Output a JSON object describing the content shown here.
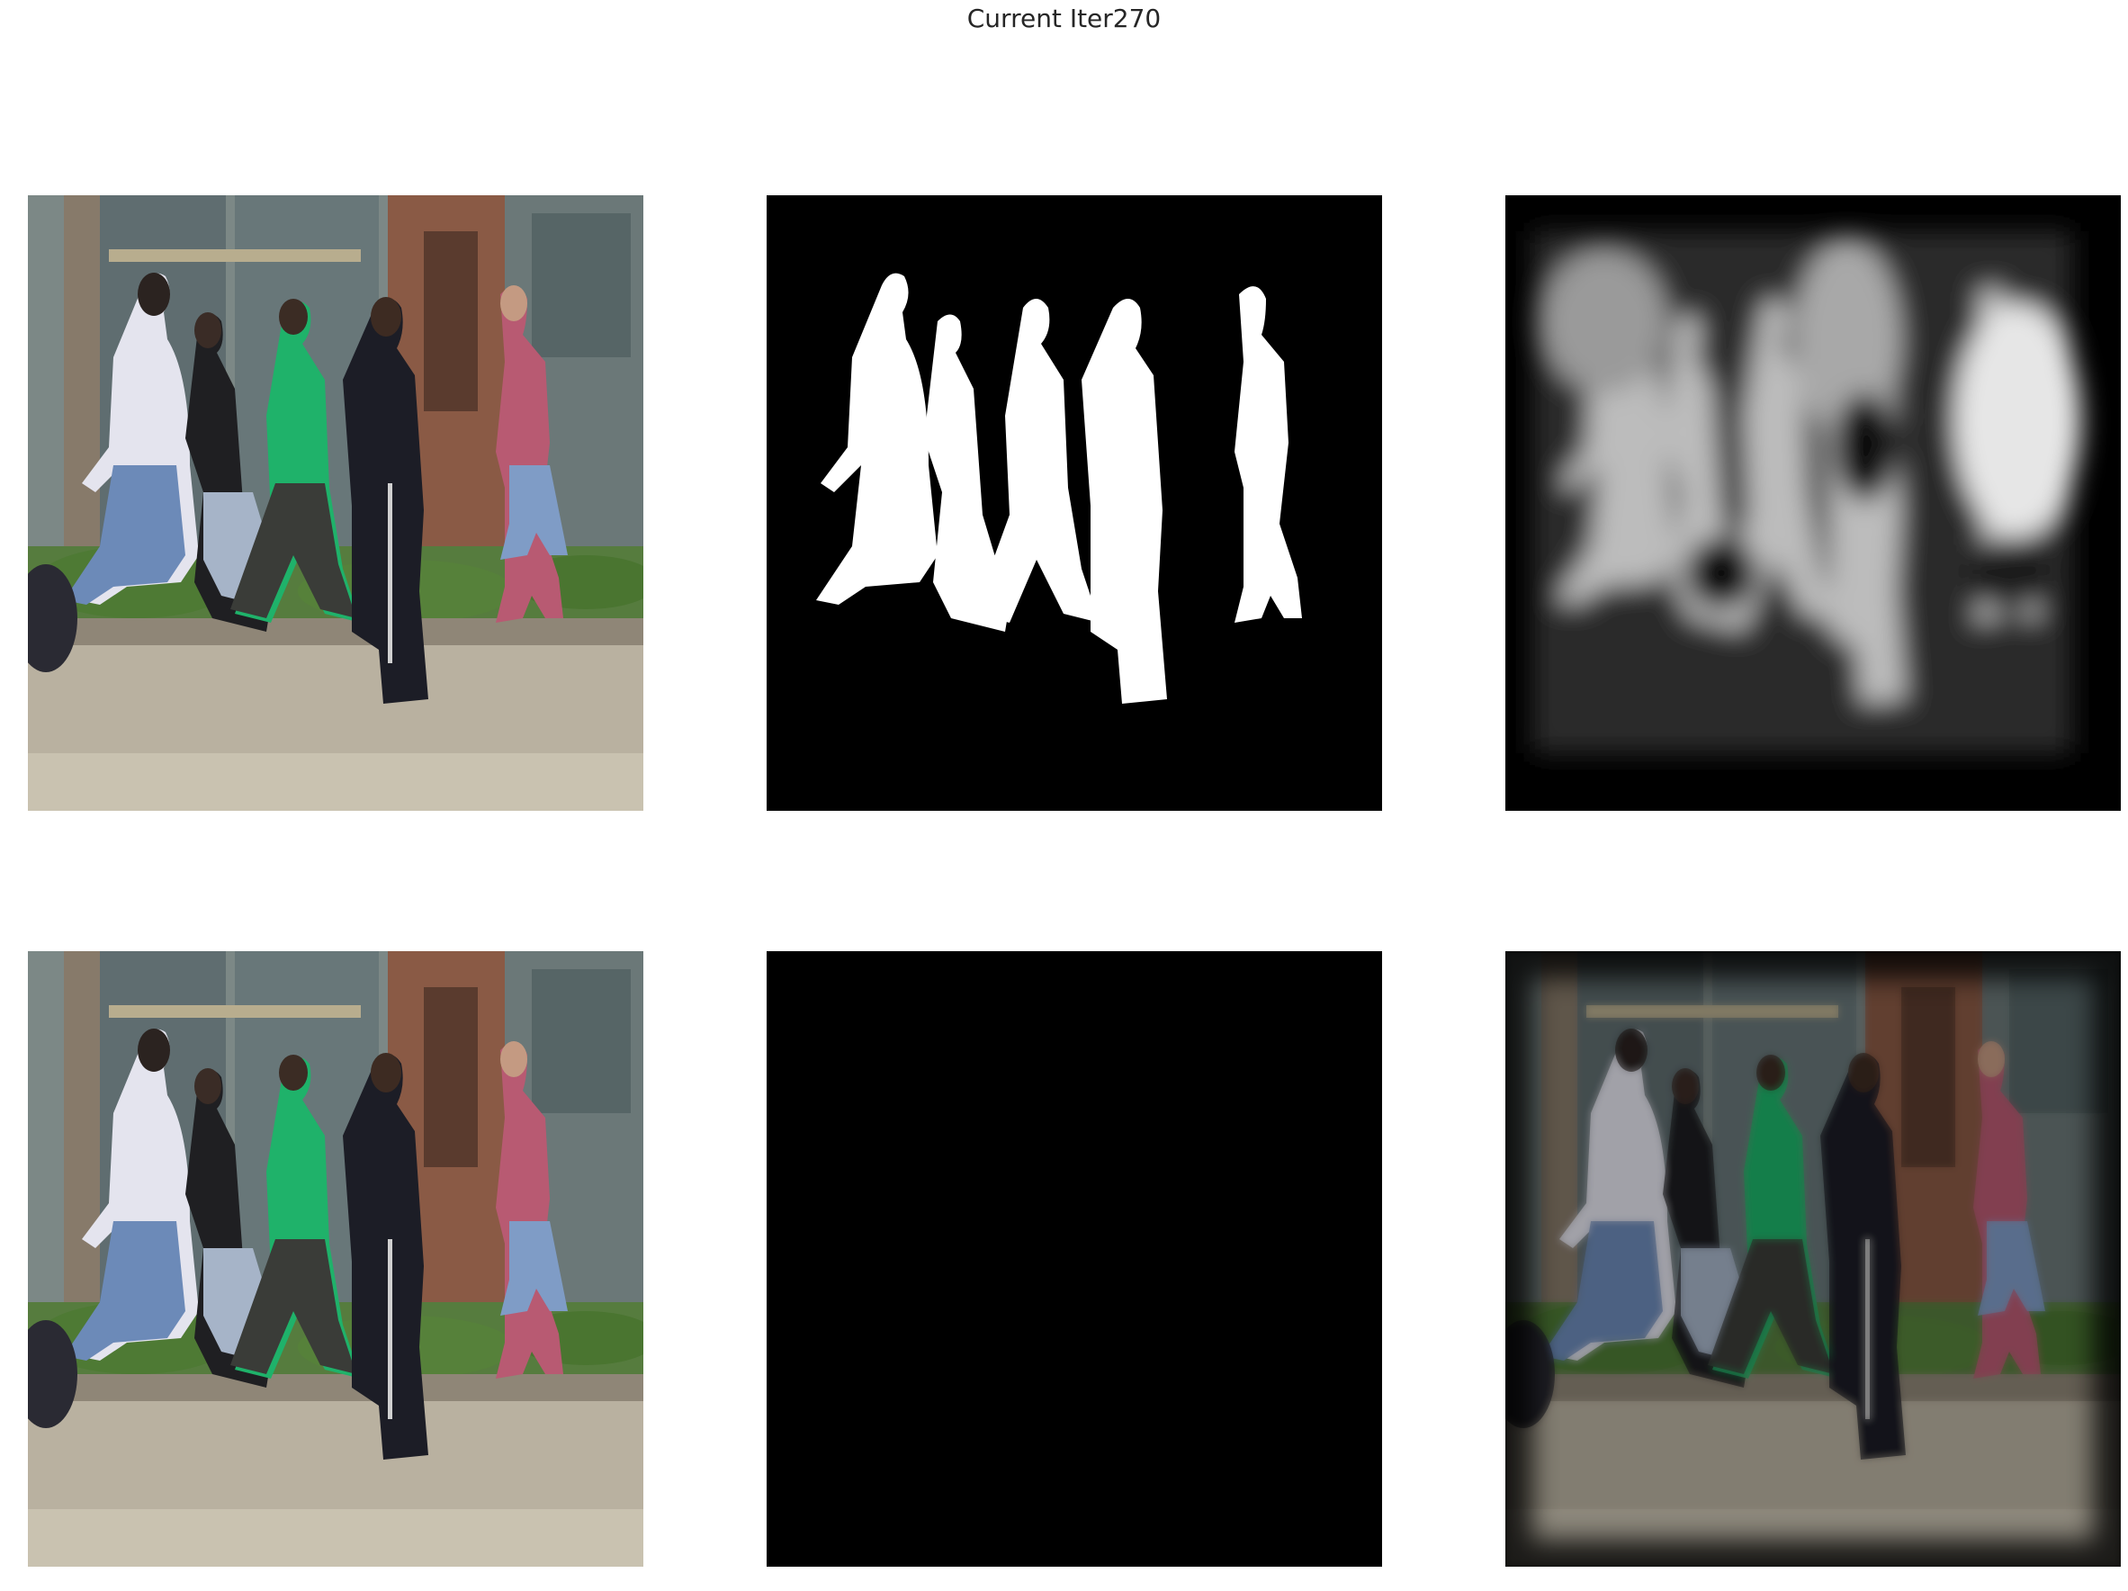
{
  "figure": {
    "title": "Current Iter270"
  },
  "panels": [
    {
      "row": 0,
      "col": 0,
      "content": "input-image"
    },
    {
      "row": 0,
      "col": 1,
      "content": "ground-truth-mask"
    },
    {
      "row": 0,
      "col": 2,
      "content": "predicted-mask"
    },
    {
      "row": 1,
      "col": 0,
      "content": "input-image"
    },
    {
      "row": 1,
      "col": 1,
      "content": "ground-truth-masked-image"
    },
    {
      "row": 1,
      "col": 2,
      "content": "predicted-masked-image"
    }
  ],
  "colors": {
    "background": "#ffffff",
    "mask_background": "#000000",
    "mask_foreground": "#ffffff",
    "green_jacket": "#1fb26a",
    "pink_shirt": "#b85a72",
    "brick": "#8a5a45",
    "jeans": "#7f9cc6"
  }
}
